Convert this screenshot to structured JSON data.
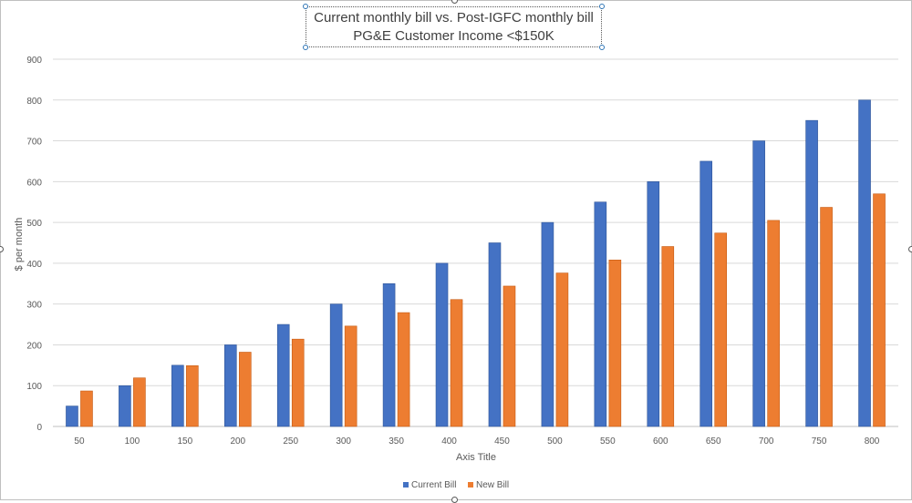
{
  "chart_data": {
    "type": "bar",
    "title": "Current monthly bill vs. Post-IGFC monthly bill",
    "subtitle": "PG&E Customer Income <$150K",
    "xlabel": "Axis Title",
    "ylabel": "$ per month",
    "ylim": [
      0,
      900
    ],
    "yticks": [
      0,
      100,
      200,
      300,
      400,
      500,
      600,
      700,
      800,
      900
    ],
    "grid": true,
    "legend_position": "bottom",
    "categories": [
      "50",
      "100",
      "150",
      "200",
      "250",
      "300",
      "350",
      "400",
      "450",
      "500",
      "550",
      "600",
      "650",
      "700",
      "750",
      "800"
    ],
    "series": [
      {
        "name": "Current Bill",
        "color": "#4472c4",
        "values": [
          50,
          100,
          150,
          200,
          250,
          300,
          350,
          400,
          450,
          500,
          550,
          600,
          650,
          700,
          750,
          800
        ]
      },
      {
        "name": "New Bill",
        "color": "#ed7d31",
        "values": [
          87,
          119,
          149,
          182,
          214,
          246,
          279,
          311,
          344,
          376,
          408,
          441,
          474,
          505,
          537,
          570
        ]
      }
    ]
  }
}
